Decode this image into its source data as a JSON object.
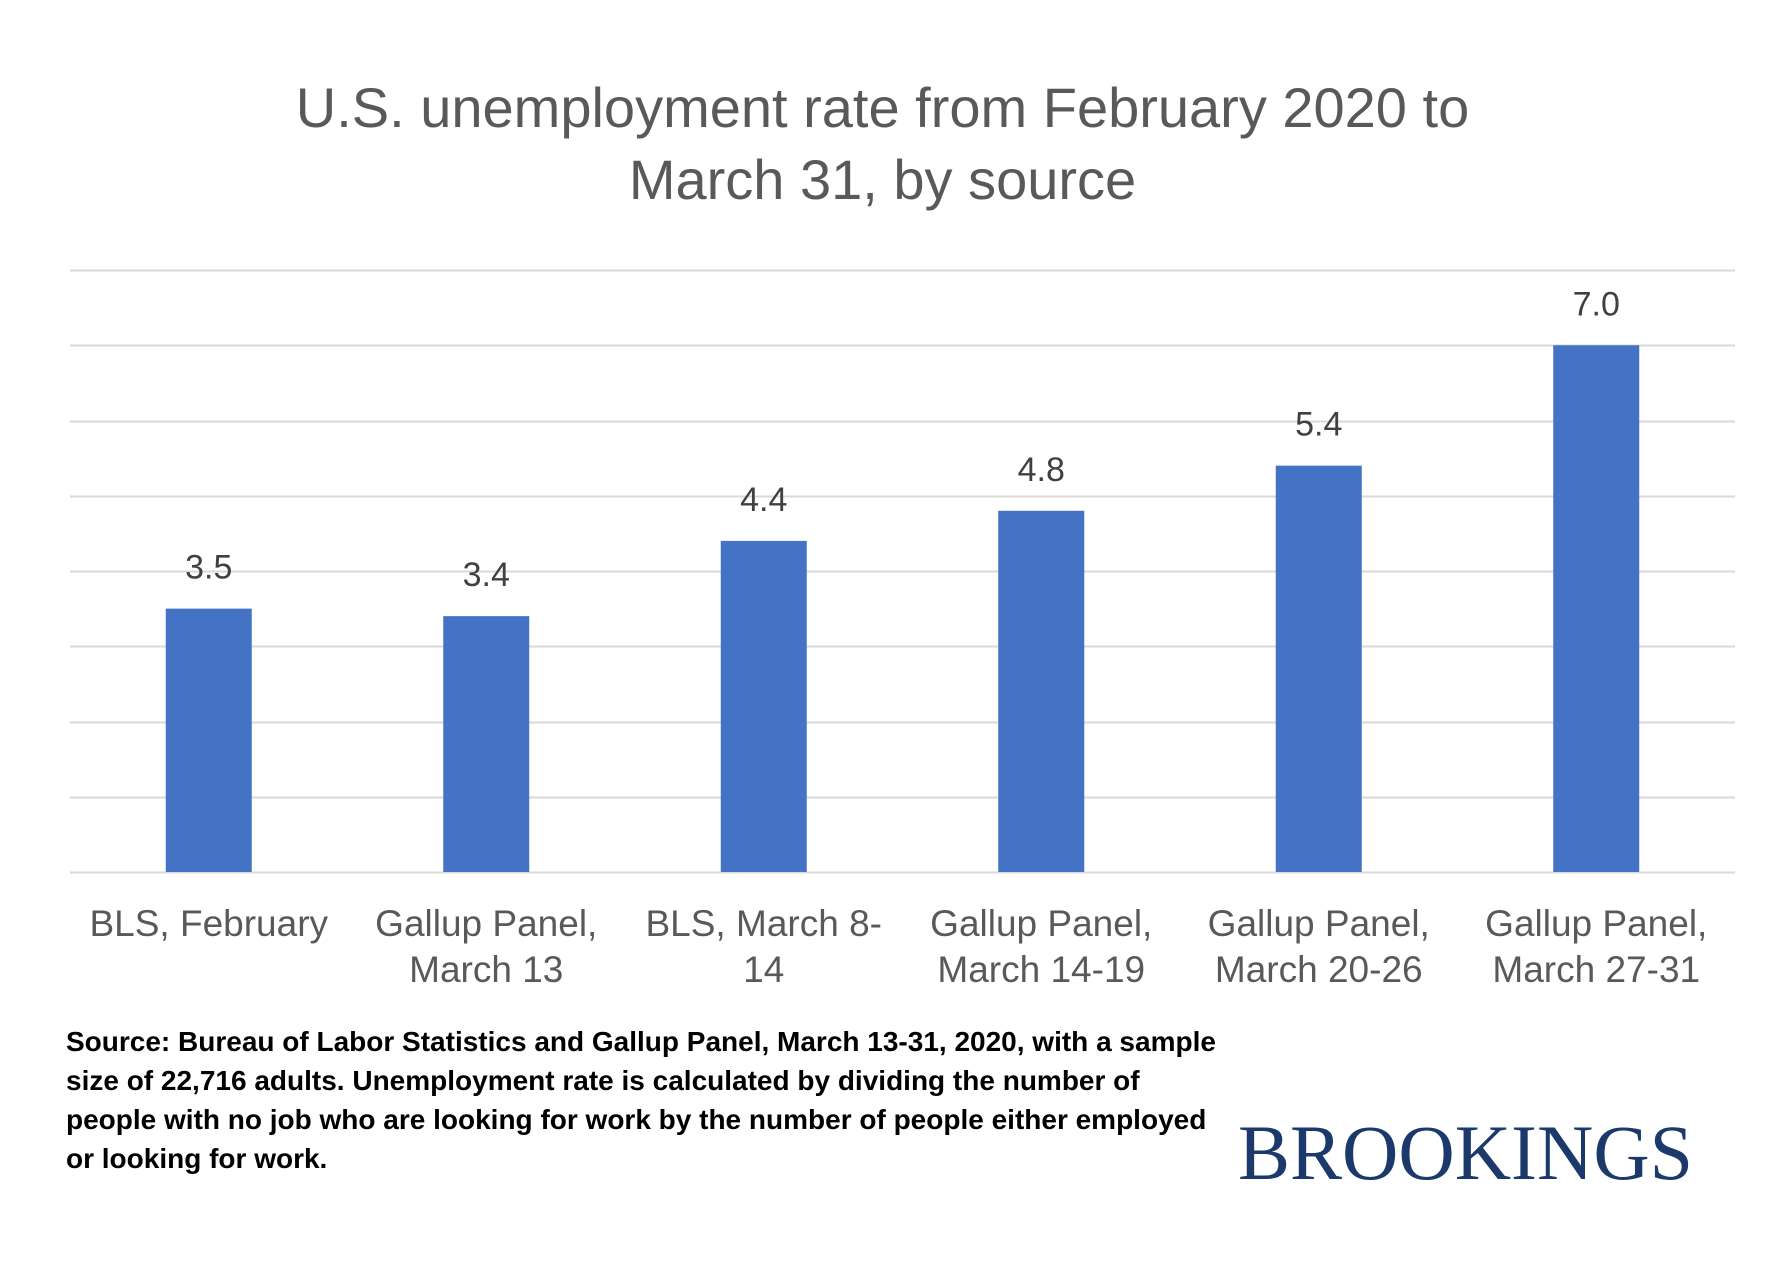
{
  "chart_data": {
    "type": "bar",
    "title_lines": [
      "U.S. unemployment rate from February 2020 to",
      "March 31, by source"
    ],
    "categories": [
      [
        "BLS, February"
      ],
      [
        "Gallup Panel,",
        "March 13"
      ],
      [
        "BLS, March 8-",
        "14"
      ],
      [
        "Gallup Panel,",
        "March 14-19"
      ],
      [
        "Gallup Panel,",
        "March 20-26"
      ],
      [
        "Gallup Panel,",
        "March 27-31"
      ]
    ],
    "values": [
      3.5,
      3.4,
      4.4,
      4.8,
      5.4,
      7.0
    ],
    "data_labels": [
      "3.5",
      "3.4",
      "4.4",
      "4.8",
      "5.4",
      "7.0"
    ],
    "ylim": [
      0,
      8
    ],
    "gridline_step": 1,
    "grid": true,
    "legend": "none",
    "bar_color": "#4472c4",
    "gridline_color": "#d9d9d9"
  },
  "source_note": "Source: Bureau of Labor Statistics and Gallup Panel, March 13-31, 2020, with a sample size of 22,716 adults. Unemployment rate is calculated by dividing the number of people with no job who are looking for work by the number of people either employed or looking for work.",
  "brand": {
    "name": "BROOKINGS",
    "color": "#1b3a6b"
  }
}
